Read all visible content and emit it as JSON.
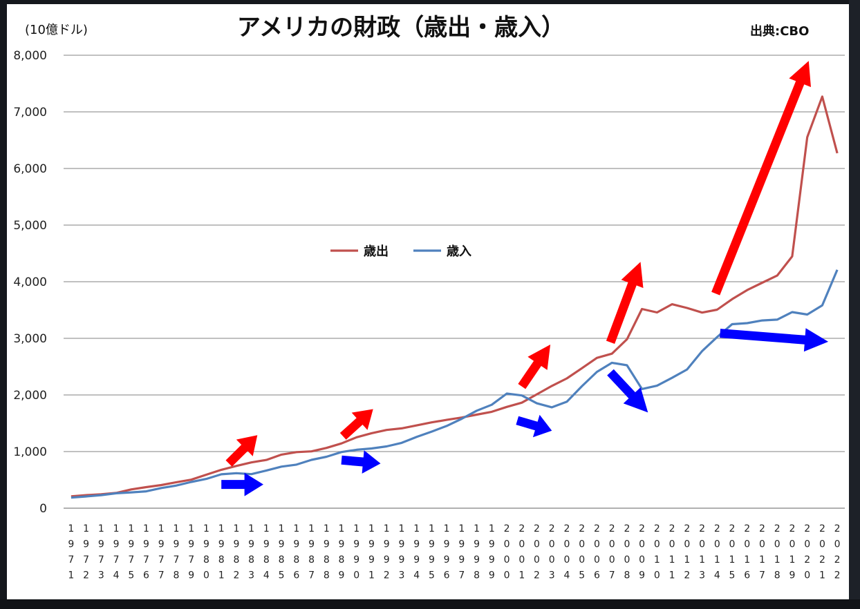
{
  "chart_data": {
    "type": "line",
    "title": "アメリカの財政（歳出・歳入）",
    "unit_label": "(10億ドル)",
    "source": "出典:CBO",
    "ylim": [
      0,
      8000
    ],
    "y_ticks": [
      "0",
      "1,000",
      "2,000",
      "3,000",
      "4,000",
      "5,000",
      "6,000",
      "7,000",
      "8,000"
    ],
    "grid": true,
    "legend": "center",
    "x": [
      1971,
      1972,
      1973,
      1974,
      1975,
      1976,
      1977,
      1978,
      1979,
      1980,
      1981,
      1982,
      1983,
      1984,
      1985,
      1986,
      1987,
      1988,
      1989,
      1990,
      1991,
      1992,
      1993,
      1994,
      1995,
      1996,
      1997,
      1998,
      1999,
      2000,
      2001,
      2002,
      2003,
      2004,
      2005,
      2006,
      2007,
      2008,
      2009,
      2010,
      2011,
      2012,
      2013,
      2014,
      2015,
      2016,
      2017,
      2018,
      2019,
      2020,
      2021,
      2022
    ],
    "series": [
      {
        "name": "歳出",
        "color": "#c0504d",
        "values": [
          210,
          231,
          246,
          269,
          332,
          372,
          409,
          459,
          504,
          591,
          678,
          746,
          808,
          852,
          946,
          990,
          1004,
          1065,
          1144,
          1253,
          1324,
          1382,
          1410,
          1462,
          1516,
          1560,
          1601,
          1652,
          1702,
          1789,
          1863,
          2011,
          2160,
          2293,
          2472,
          2655,
          2729,
          2983,
          3518,
          3457,
          3603,
          3537,
          3455,
          3506,
          3692,
          3853,
          3982,
          4109,
          4447,
          6552,
          7270,
          6270
        ]
      },
      {
        "name": "歳入",
        "color": "#4f81bd",
        "values": [
          187,
          207,
          231,
          263,
          279,
          298,
          356,
          400,
          463,
          517,
          599,
          618,
          601,
          666,
          734,
          769,
          854,
          909,
          991,
          1032,
          1055,
          1091,
          1154,
          1259,
          1352,
          1453,
          1579,
          1722,
          1827,
          2025,
          1991,
          1853,
          1782,
          1880,
          2154,
          2407,
          2568,
          2524,
          2105,
          2163,
          2303,
          2450,
          2775,
          3022,
          3250,
          3268,
          3316,
          3330,
          3463,
          3421,
          3582,
          4210
        ]
      }
    ],
    "annotations": [
      {
        "type": "arrow",
        "color": "#ff0000",
        "from": [
          1981.5,
          790
        ],
        "to": [
          1983.4,
          1290
        ]
      },
      {
        "type": "arrow",
        "color": "#ff0000",
        "from": [
          1989.1,
          1270
        ],
        "to": [
          1991.1,
          1750
        ]
      },
      {
        "type": "arrow",
        "color": "#ff0000",
        "from": [
          2001.0,
          2150
        ],
        "to": [
          2002.9,
          2890
        ]
      },
      {
        "type": "arrow",
        "color": "#ff0000",
        "from": [
          2006.9,
          2930
        ],
        "to": [
          2008.9,
          4350
        ]
      },
      {
        "type": "arrow",
        "color": "#ff0000",
        "from": [
          2013.9,
          3790
        ],
        "to": [
          2020.1,
          7900
        ]
      },
      {
        "type": "arrow",
        "color": "#0000ff",
        "from": [
          1981.0,
          420
        ],
        "to": [
          1983.8,
          420
        ]
      },
      {
        "type": "arrow",
        "color": "#0000ff",
        "from": [
          1989.0,
          850
        ],
        "to": [
          1991.6,
          790
        ]
      },
      {
        "type": "arrow",
        "color": "#0000ff",
        "from": [
          2000.7,
          1550
        ],
        "to": [
          2003.0,
          1370
        ]
      },
      {
        "type": "arrow",
        "color": "#0000ff",
        "from": [
          2006.9,
          2400
        ],
        "to": [
          2009.4,
          1690
        ]
      },
      {
        "type": "arrow",
        "color": "#0000ff",
        "from": [
          2014.2,
          3090
        ],
        "to": [
          2021.4,
          2940
        ]
      }
    ]
  }
}
